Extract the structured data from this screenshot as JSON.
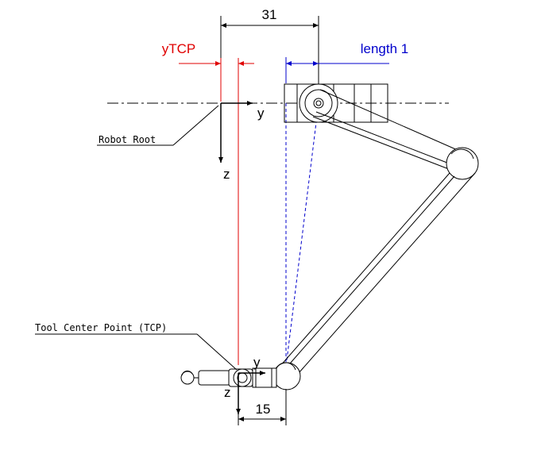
{
  "dimensions": {
    "top": "31",
    "bottom": "15"
  },
  "labels": {
    "ytcp": "yTCP",
    "length1": "length 1",
    "robot_root": "Robot Root",
    "tcp": "Tool Center Point (TCP)",
    "root_axis_y": "y",
    "root_axis_z": "z",
    "tcp_axis_y": "y",
    "tcp_axis_z": "z"
  },
  "colors": {
    "ytcp": "#e00000",
    "length1": "#0000cc",
    "line": "#000000"
  }
}
